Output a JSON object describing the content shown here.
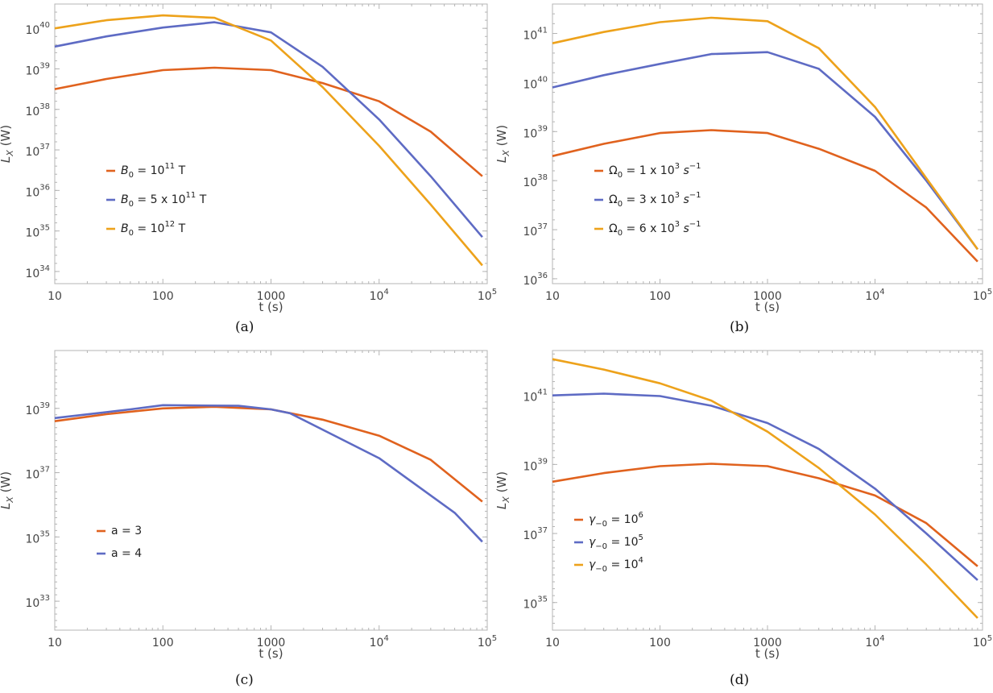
{
  "colors": {
    "series1": "#e0621e",
    "series2": "#5e6bc4",
    "series3": "#eda21b",
    "frame": "#b4b4b4",
    "tick": "#b4b4b4"
  },
  "chart_data": [
    {
      "type": "line",
      "caption": "(a)",
      "xlabel": "t (s)",
      "ylabel": "L_X (W)",
      "xscale": "log",
      "yscale": "log",
      "xlim": [
        10,
        100000
      ],
      "ylim": [
        33.7,
        40.6
      ],
      "xticks": [
        {
          "v": 10,
          "l": "10"
        },
        {
          "v": 100,
          "l": "100"
        },
        {
          "v": 1000,
          "l": "1000"
        },
        {
          "v": 10000,
          "m": "10",
          "e": "4"
        },
        {
          "v": 100000,
          "m": "10",
          "e": "5"
        }
      ],
      "yticks": [
        {
          "e": "34"
        },
        {
          "e": "35"
        },
        {
          "e": "36"
        },
        {
          "e": "37"
        },
        {
          "e": "38"
        },
        {
          "e": "39"
        },
        {
          "e": "40"
        }
      ],
      "legend_position": "lower-left",
      "series": [
        {
          "legend": {
            "pre": "B",
            "sub": "0",
            "mid": " = 10",
            "sup": "11",
            "post": " T"
          },
          "x": [
            10,
            30,
            100,
            300,
            1000,
            3000,
            10000,
            30000,
            90000
          ],
          "y": [
            38.5,
            38.75,
            38.97,
            39.03,
            38.97,
            38.65,
            38.2,
            37.45,
            36.35
          ]
        },
        {
          "legend": {
            "pre": "B",
            "sub": "0",
            "mid": " = 5 x 10",
            "sup": "11",
            "post": " T"
          },
          "x": [
            10,
            30,
            100,
            300,
            1000,
            3000,
            10000,
            30000,
            90000
          ],
          "y": [
            39.55,
            39.8,
            40.02,
            40.15,
            39.9,
            39.05,
            37.75,
            36.35,
            34.85
          ]
        },
        {
          "legend": {
            "pre": "B",
            "sub": "0",
            "mid": " = 10",
            "sup": "12",
            "post": " T"
          },
          "x": [
            10,
            30,
            100,
            300,
            1000,
            3000,
            10000,
            30000,
            90000
          ],
          "y": [
            40.0,
            40.2,
            40.32,
            40.26,
            39.7,
            38.55,
            37.1,
            35.65,
            34.15
          ]
        }
      ]
    },
    {
      "type": "line",
      "caption": "(b)",
      "xlabel": "t (s)",
      "ylabel": "L_X (W)",
      "xscale": "log",
      "yscale": "log",
      "xlim": [
        10,
        100000
      ],
      "ylim": [
        35.9,
        41.6
      ],
      "xticks": [
        {
          "v": 10,
          "l": "10"
        },
        {
          "v": 100,
          "l": "100"
        },
        {
          "v": 1000,
          "l": "1000"
        },
        {
          "v": 10000,
          "m": "10",
          "e": "4"
        },
        {
          "v": 100000,
          "m": "10",
          "e": "5"
        }
      ],
      "yticks": [
        {
          "e": "36"
        },
        {
          "e": "37"
        },
        {
          "e": "38"
        },
        {
          "e": "39"
        },
        {
          "e": "40"
        },
        {
          "e": "41"
        }
      ],
      "legend_position": "lower-left",
      "series": [
        {
          "legend": {
            "pre": "Ω",
            "sub": "0",
            "mid": " = 1 x 10",
            "sup": "3",
            "post": " s",
            "sup2": "−1"
          },
          "x": [
            10,
            30,
            100,
            300,
            1000,
            3000,
            10000,
            30000,
            90000
          ],
          "y": [
            38.5,
            38.75,
            38.97,
            39.03,
            38.97,
            38.65,
            38.2,
            37.45,
            36.35
          ]
        },
        {
          "legend": {
            "pre": "Ω",
            "sub": "0",
            "mid": " = 3 x 10",
            "sup": "3",
            "post": " s",
            "sup2": "−1"
          },
          "x": [
            10,
            30,
            100,
            300,
            1000,
            3000,
            10000,
            30000,
            90000
          ],
          "y": [
            39.9,
            40.15,
            40.38,
            40.58,
            40.62,
            40.28,
            39.3,
            38.0,
            36.6
          ]
        },
        {
          "legend": {
            "pre": "Ω",
            "sub": "0",
            "mid": " = 6 x 10",
            "sup": "3",
            "post": " s",
            "sup2": "−1"
          },
          "x": [
            10,
            30,
            100,
            300,
            1000,
            3000,
            10000,
            30000,
            90000
          ],
          "y": [
            40.8,
            41.03,
            41.23,
            41.32,
            41.25,
            40.7,
            39.5,
            38.05,
            36.6
          ]
        }
      ]
    },
    {
      "type": "line",
      "caption": "(c)",
      "xlabel": "t (s)",
      "ylabel": "L_X (W)",
      "xscale": "log",
      "yscale": "log",
      "xlim": [
        10,
        100000
      ],
      "ylim": [
        32.1,
        40.8
      ],
      "xticks": [
        {
          "v": 10,
          "l": "10"
        },
        {
          "v": 100,
          "l": "100"
        },
        {
          "v": 1000,
          "l": "1000"
        },
        {
          "v": 10000,
          "m": "10",
          "e": "4"
        },
        {
          "v": 100000,
          "m": "10",
          "e": "5"
        }
      ],
      "yticks": [
        {
          "e": "33"
        },
        {
          "e": "35"
        },
        {
          "e": "37"
        },
        {
          "e": "39"
        }
      ],
      "legend_position": "lower-left",
      "series": [
        {
          "legend": {
            "pre": "",
            "sub": "",
            "mid": "a = 3",
            "sup": "",
            "post": ""
          },
          "x": [
            10,
            30,
            100,
            300,
            1000,
            3000,
            10000,
            30000,
            90000
          ],
          "y": [
            38.6,
            38.82,
            39.0,
            39.05,
            38.97,
            38.65,
            38.15,
            37.4,
            36.1
          ]
        },
        {
          "legend": {
            "pre": "",
            "sub": "",
            "mid": "a = 4",
            "sup": "",
            "post": ""
          },
          "x": [
            10,
            50,
            100,
            500,
            1000,
            1500,
            10000,
            50000,
            90000
          ],
          "y": [
            38.7,
            38.97,
            39.1,
            39.08,
            38.97,
            38.85,
            37.45,
            35.75,
            34.85
          ]
        }
      ]
    },
    {
      "type": "line",
      "caption": "(d)",
      "xlabel": "t (s)",
      "ylabel": "L_X (W)",
      "xscale": "log",
      "yscale": "log",
      "xlim": [
        10,
        100000
      ],
      "ylim": [
        34.2,
        42.3
      ],
      "xticks": [
        {
          "v": 10,
          "l": "10"
        },
        {
          "v": 100,
          "l": "100"
        },
        {
          "v": 1000,
          "l": "1000"
        },
        {
          "v": 10000,
          "m": "10",
          "e": "4"
        },
        {
          "v": 100000,
          "m": "10",
          "e": "5"
        }
      ],
      "yticks": [
        {
          "e": "35"
        },
        {
          "e": "37"
        },
        {
          "e": "39"
        },
        {
          "e": "41"
        }
      ],
      "legend_position": "lower-left",
      "series": [
        {
          "legend": {
            "pre": "γ",
            "sub": "−0",
            "mid": " = 10",
            "sup": "6",
            "post": ""
          },
          "x": [
            10,
            30,
            100,
            300,
            1000,
            3000,
            10000,
            30000,
            90000
          ],
          "y": [
            38.5,
            38.75,
            38.95,
            39.02,
            38.95,
            38.6,
            38.1,
            37.3,
            36.05
          ]
        },
        {
          "legend": {
            "pre": "γ",
            "sub": "−0",
            "mid": " = 10",
            "sup": "5",
            "post": ""
          },
          "x": [
            10,
            30,
            100,
            300,
            1000,
            3000,
            10000,
            30000,
            90000
          ],
          "y": [
            41.0,
            41.05,
            40.98,
            40.7,
            40.2,
            39.45,
            38.3,
            37.0,
            35.65
          ]
        },
        {
          "legend": {
            "pre": "γ",
            "sub": "−0",
            "mid": " = 10",
            "sup": "4",
            "post": ""
          },
          "x": [
            10,
            30,
            100,
            300,
            1000,
            3000,
            10000,
            30000,
            90000
          ],
          "y": [
            42.05,
            41.75,
            41.35,
            40.85,
            39.95,
            38.9,
            37.55,
            36.1,
            34.55
          ]
        }
      ]
    }
  ]
}
